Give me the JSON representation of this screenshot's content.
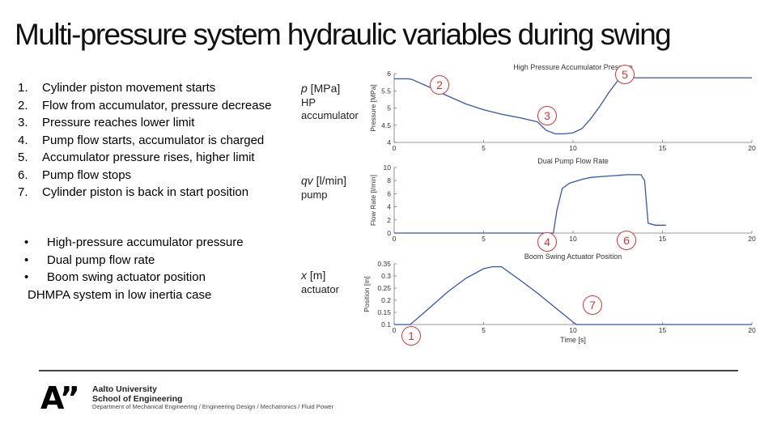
{
  "page": {
    "title": "Multi-pressure system hydraulic variables during swing",
    "steps": [
      {
        "num": "1.",
        "text": "Cylinder piston movement starts"
      },
      {
        "num": "2.",
        "text": "Flow from accumulator, pressure decrease"
      },
      {
        "num": "3.",
        "text": "Pressure reaches lower limit"
      },
      {
        "num": "4.",
        "text": "Pump flow starts, accumulator is charged"
      },
      {
        "num": "5.",
        "text": "Accumulator pressure rises, higher limit"
      },
      {
        "num": "6.",
        "text": "Pump flow stops"
      },
      {
        "num": "7.",
        "text": "Cylinder piston is back in start position"
      }
    ],
    "bullets": [
      "High-pressure accumulator pressure",
      "Dual pump flow rate",
      "Boom swing actuator position"
    ],
    "bullet_char": "•",
    "bullets_footer": "DHMPA system in low inertia case",
    "var_labels": [
      {
        "sym": "p",
        "unit": " [MPa]",
        "sub": "HP accumulator"
      },
      {
        "sym": "qv",
        "unit": " [l/min]",
        "sub": "pump"
      },
      {
        "sym": "x",
        "unit": " [m]",
        "sub": "actuator"
      }
    ],
    "markers": [
      "1",
      "2",
      "3",
      "4",
      "5",
      "6",
      "7"
    ],
    "footer": {
      "logo": "A”",
      "university_line1": "Aalto University",
      "university_line2": "School of Engineering",
      "department": "Department of Mechanical Engineering / Engineering Design / Mechatronics / Fluid Power"
    }
  },
  "chart_data": [
    {
      "type": "line",
      "title": "High Pressure Accumulator Pressure",
      "ylabel": "Pressure [MPa]",
      "xlim": [
        0,
        20
      ],
      "ylim": [
        4,
        6
      ],
      "xticks": [
        0,
        5,
        10,
        15,
        20
      ],
      "yticks": [
        4,
        4.5,
        5,
        5.5,
        6
      ],
      "ytick_labels": [
        "4",
        "4.5",
        "5",
        "5.5",
        "6"
      ],
      "color": "#3355bb",
      "series": [
        {
          "x": [
            0,
            0.8,
            1,
            2,
            3,
            4,
            5,
            6,
            7,
            8,
            8.5,
            9,
            9.5,
            10,
            10.5,
            11,
            11.5,
            12,
            12.5,
            13,
            14,
            15,
            17,
            20
          ],
          "y": [
            5.85,
            5.85,
            5.83,
            5.6,
            5.35,
            5.12,
            4.95,
            4.82,
            4.72,
            4.6,
            4.35,
            4.25,
            4.25,
            4.28,
            4.4,
            4.7,
            5.05,
            5.45,
            5.8,
            5.88,
            5.88,
            5.88,
            5.88,
            5.88
          ]
        }
      ]
    },
    {
      "type": "line",
      "title": "Dual Pump Flow Rate",
      "ylabel": "Flow Rate [l/min]",
      "xlim": [
        0,
        20
      ],
      "ylim": [
        0,
        10
      ],
      "xticks": [
        0,
        5,
        10,
        15,
        20
      ],
      "yticks": [
        0,
        2,
        4,
        6,
        8,
        10
      ],
      "ytick_labels": [
        "0",
        "2",
        "4",
        "6",
        "8",
        "10"
      ],
      "color": "#3355bb",
      "series": [
        {
          "x": [
            0,
            8.9,
            9.1,
            9.4,
            9.8,
            10.5,
            11,
            12,
            13,
            13.8,
            14.0,
            14.2,
            14.6,
            15.2
          ],
          "y": [
            0,
            0,
            3.5,
            6.8,
            7.6,
            8.2,
            8.5,
            8.7,
            8.9,
            8.9,
            8.0,
            1.5,
            1.2,
            1.2
          ]
        }
      ]
    },
    {
      "type": "line",
      "title": "Boom Swing Actuator Position",
      "ylabel": "Position [m]",
      "xlabel": "Time [s]",
      "xlim": [
        0,
        20
      ],
      "ylim": [
        0.1,
        0.35
      ],
      "xticks": [
        0,
        5,
        10,
        15,
        20
      ],
      "yticks": [
        0.1,
        0.15,
        0.2,
        0.25,
        0.3,
        0.35
      ],
      "ytick_labels": [
        "0.1",
        "0.15",
        "0.2",
        "0.25",
        "0.3",
        "0.35"
      ],
      "color": "#3355bb",
      "series": [
        {
          "x": [
            0,
            0.9,
            2,
            3,
            4,
            5,
            5.5,
            6,
            7,
            8,
            9,
            10,
            10.2,
            12,
            15,
            20
          ],
          "y": [
            0.1,
            0.1,
            0.17,
            0.235,
            0.29,
            0.33,
            0.338,
            0.338,
            0.285,
            0.23,
            0.17,
            0.11,
            0.1,
            0.1,
            0.1,
            0.1
          ]
        }
      ]
    }
  ]
}
